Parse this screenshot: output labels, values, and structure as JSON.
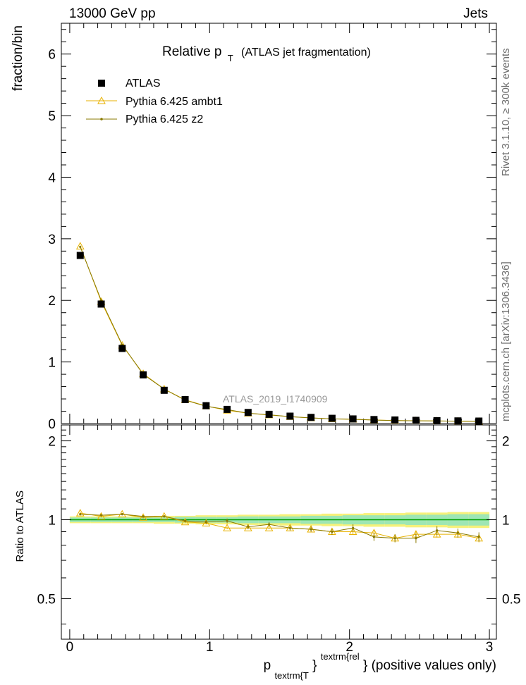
{
  "header": {
    "left": "13000 GeV pp",
    "right": "Jets"
  },
  "side_labels": {
    "rivet": "Rivet 3.1.10, ≥ 300k events",
    "mcplots": "mcplots.cern.ch [arXiv:1306.3436]"
  },
  "chart_data": {
    "type": "scatter",
    "title_main": "Relative p",
    "title_sub": "T",
    "title_tail": "(ATLAS jet fragmentation)",
    "analysis_label": "ATLAS_2019_I1740909",
    "ylabel": "fraction/bin",
    "ratio_ylabel": "Ratio to ATLAS",
    "xlabel": {
      "p": "p",
      "sub": "textrm{T",
      "close": "}",
      "sup": "textrm{rel",
      "tail": "} (positive values only)"
    },
    "xlim": [
      -0.06,
      3.05
    ],
    "ylim": [
      0,
      6.5
    ],
    "ratio_ylim": [
      0.35,
      2.3
    ],
    "x_ticks": [
      "0",
      "1",
      "2",
      "3"
    ],
    "y_ticks": [
      "0",
      "1",
      "2",
      "3",
      "4",
      "5",
      "6"
    ],
    "ratio_y_ticks": [
      "0.5",
      "1",
      "2"
    ],
    "colors": {
      "data": "#000000",
      "ambt1": "#e8b200",
      "z2": "#8a7a00",
      "band_green": "#9ee6b4",
      "band_yellow": "#f6f17a",
      "ratio_line": "#00a000"
    },
    "x": [
      0.075,
      0.225,
      0.375,
      0.525,
      0.675,
      0.825,
      0.975,
      1.125,
      1.275,
      1.425,
      1.575,
      1.725,
      1.875,
      2.025,
      2.175,
      2.325,
      2.475,
      2.625,
      2.775,
      2.925
    ],
    "series": [
      {
        "name": "ATLAS",
        "marker": "square",
        "values": [
          2.73,
          1.94,
          1.22,
          0.79,
          0.54,
          0.39,
          0.29,
          0.23,
          0.18,
          0.15,
          0.12,
          0.1,
          0.085,
          0.075,
          0.065,
          0.058,
          0.052,
          0.047,
          0.043,
          0.04
        ],
        "band_green": [
          0.02,
          0.02,
          0.02,
          0.02,
          0.02,
          0.025,
          0.025,
          0.025,
          0.03,
          0.03,
          0.03,
          0.035,
          0.035,
          0.04,
          0.04,
          0.04,
          0.045,
          0.045,
          0.05,
          0.05
        ],
        "band_yellow": [
          0.03,
          0.03,
          0.03,
          0.03,
          0.035,
          0.035,
          0.04,
          0.04,
          0.045,
          0.045,
          0.05,
          0.05,
          0.055,
          0.055,
          0.06,
          0.06,
          0.065,
          0.065,
          0.07,
          0.07
        ]
      },
      {
        "name": "Pythia 6.425 ambt1",
        "marker": "triangle",
        "values": [
          2.88,
          1.98,
          1.27,
          0.81,
          0.56,
          0.385,
          0.285,
          0.215,
          0.168,
          0.139,
          0.112,
          0.092,
          0.076,
          0.068,
          0.058,
          0.049,
          0.046,
          0.041,
          0.038,
          0.034
        ],
        "ratio": [
          1.06,
          1.03,
          1.05,
          1.02,
          1.03,
          0.98,
          0.97,
          0.93,
          0.93,
          0.93,
          0.93,
          0.92,
          0.9,
          0.9,
          0.89,
          0.85,
          0.88,
          0.88,
          0.88,
          0.85
        ],
        "ratio_err": [
          0.01,
          0.01,
          0.01,
          0.01,
          0.01,
          0.01,
          0.01,
          0.01,
          0.01,
          0.01,
          0.015,
          0.015,
          0.02,
          0.02,
          0.02,
          0.025,
          0.025,
          0.025,
          0.025,
          0.03
        ]
      },
      {
        "name": "Pythia 6.425 z2",
        "marker": "dot",
        "values": [
          2.87,
          2.0,
          1.28,
          0.8,
          0.56,
          0.38,
          0.28,
          0.228,
          0.168,
          0.143,
          0.112,
          0.091,
          0.076,
          0.07,
          0.056,
          0.049,
          0.044,
          0.043,
          0.038,
          0.034
        ],
        "ratio": [
          1.05,
          1.04,
          1.05,
          1.03,
          1.03,
          0.99,
          0.98,
          0.99,
          0.94,
          0.96,
          0.93,
          0.92,
          0.9,
          0.93,
          0.86,
          0.85,
          0.85,
          0.91,
          0.89,
          0.86
        ],
        "ratio_err": [
          0.01,
          0.01,
          0.01,
          0.01,
          0.01,
          0.01,
          0.015,
          0.02,
          0.02,
          0.02,
          0.02,
          0.02,
          0.025,
          0.03,
          0.03,
          0.03,
          0.035,
          0.035,
          0.035,
          0.035
        ]
      }
    ]
  }
}
